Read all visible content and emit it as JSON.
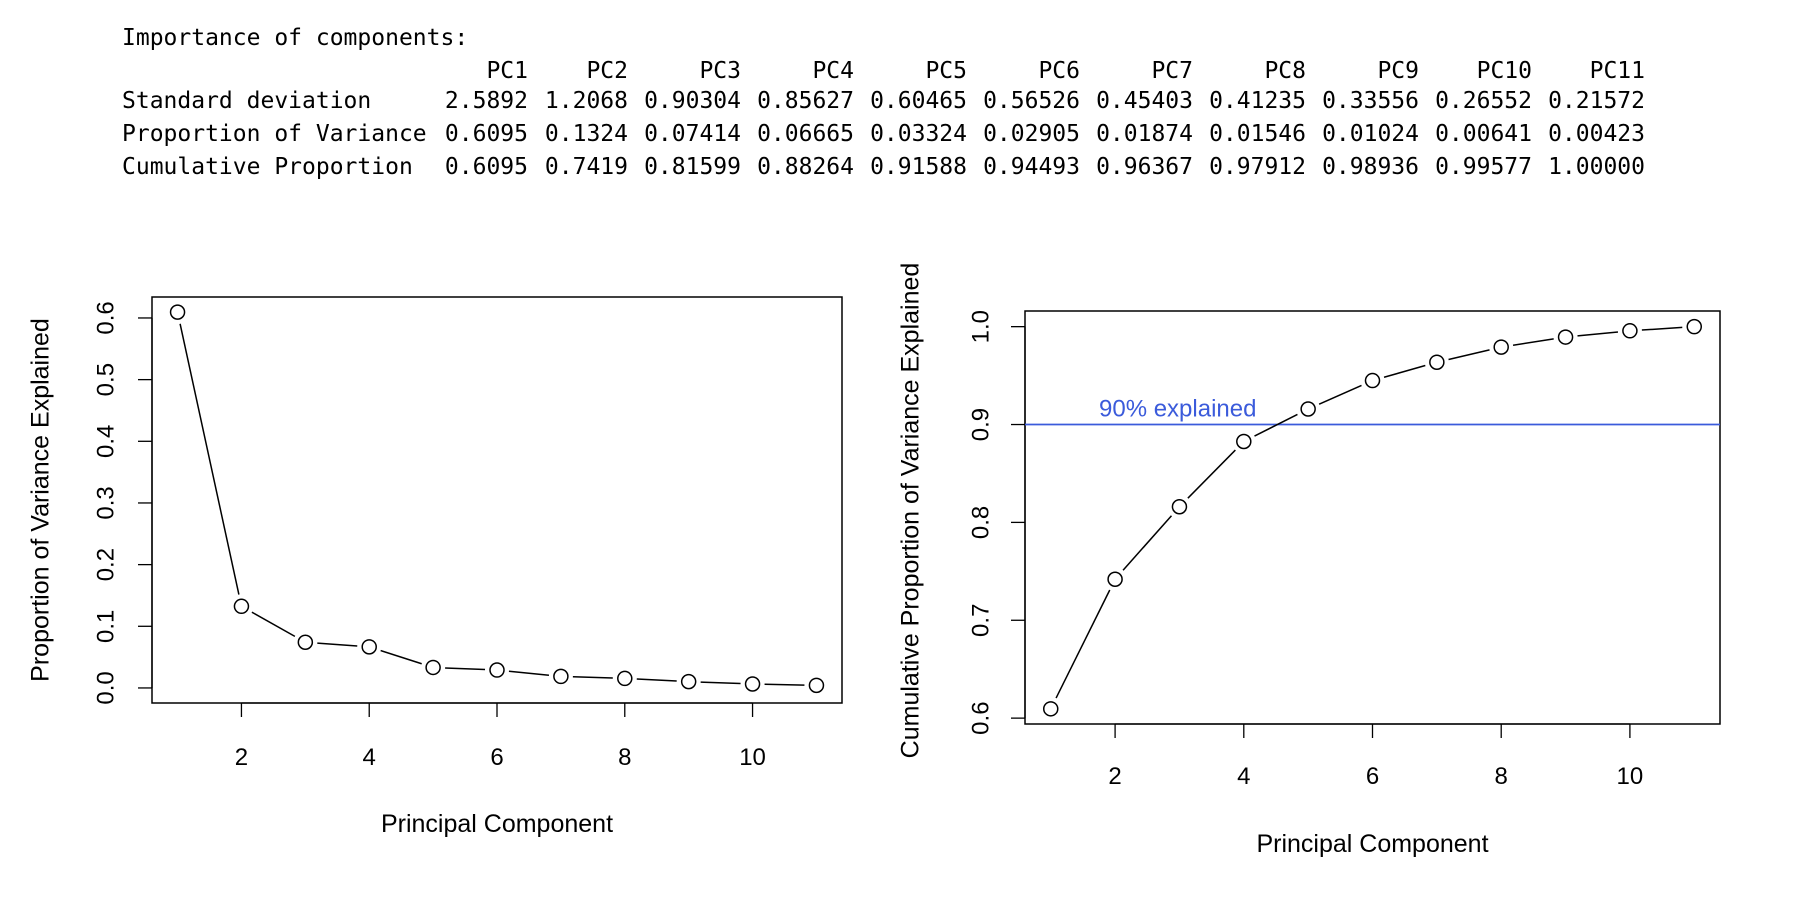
{
  "summary": {
    "title": "Importance of components:",
    "columns": [
      "PC1",
      "PC2",
      "PC3",
      "PC4",
      "PC5",
      "PC6",
      "PC7",
      "PC8",
      "PC9",
      "PC10",
      "PC11"
    ],
    "rows": [
      {
        "label": "Standard deviation",
        "values": [
          "2.5892",
          "1.2068",
          "0.90304",
          "0.85627",
          "0.60465",
          "0.56526",
          "0.45403",
          "0.41235",
          "0.33556",
          "0.26552",
          "0.21572"
        ]
      },
      {
        "label": "Proportion of Variance",
        "values": [
          "0.6095",
          "0.1324",
          "0.07414",
          "0.06665",
          "0.03324",
          "0.02905",
          "0.01874",
          "0.01546",
          "0.01024",
          "0.00641",
          "0.00423"
        ]
      },
      {
        "label": "Cumulative Proportion",
        "values": [
          "0.6095",
          "0.7419",
          "0.81599",
          "0.88264",
          "0.91588",
          "0.94493",
          "0.96367",
          "0.97912",
          "0.98936",
          "0.99577",
          "1.00000"
        ]
      }
    ]
  },
  "chart_data": [
    {
      "type": "line",
      "xlabel": "Principal Component",
      "ylabel": "Proportion of Variance Explained",
      "x": [
        1,
        2,
        3,
        4,
        5,
        6,
        7,
        8,
        9,
        10,
        11
      ],
      "y": [
        0.6095,
        0.1324,
        0.07414,
        0.06665,
        0.03324,
        0.02905,
        0.01874,
        0.01546,
        0.01024,
        0.00641,
        0.00423
      ],
      "xticks": [
        "2",
        "4",
        "6",
        "8",
        "10"
      ],
      "yticks": [
        "0.0",
        "0.1",
        "0.2",
        "0.3",
        "0.4",
        "0.5",
        "0.6"
      ],
      "xlim": [
        0.6,
        11.4
      ],
      "ylim": [
        -0.0244,
        0.634
      ],
      "markers": "open-circle",
      "grid": false
    },
    {
      "type": "line",
      "xlabel": "Principal Component",
      "ylabel": "Cumulative Proportion of Variance Explained",
      "x": [
        1,
        2,
        3,
        4,
        5,
        6,
        7,
        8,
        9,
        10,
        11
      ],
      "y": [
        0.6095,
        0.7419,
        0.81599,
        0.88264,
        0.91588,
        0.94493,
        0.96367,
        0.97912,
        0.98936,
        0.99577,
        1.0
      ],
      "xticks": [
        "2",
        "4",
        "6",
        "8",
        "10"
      ],
      "yticks": [
        "0.6",
        "0.7",
        "0.8",
        "0.9",
        "1.0"
      ],
      "xlim": [
        0.6,
        11.4
      ],
      "ylim": [
        0.594,
        1.016
      ],
      "markers": "open-circle",
      "grid": false,
      "reference_line": {
        "y": 0.9,
        "label": "90% explained",
        "color": "#3b5bdb"
      }
    }
  ]
}
